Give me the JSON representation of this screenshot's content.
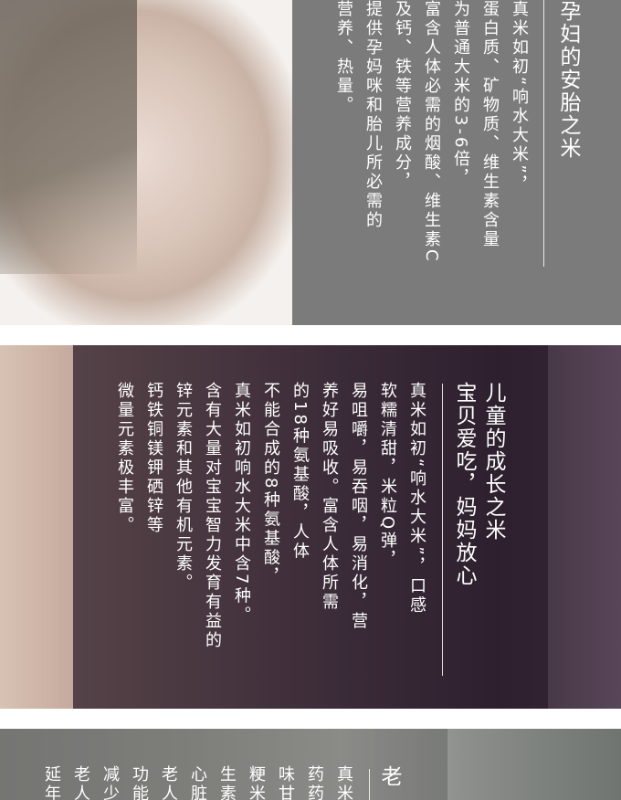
{
  "sections": [
    {
      "title": [
        "孕妇的安胎之米"
      ],
      "body": [
        "真米如初“响水大米”，",
        "蛋白质、矿物质、维生素含量",
        "为普通大米的3-6倍，",
        "富含人体必需的烟酸、维生素C",
        "及钙、铁等营养成分，",
        "提供孕妈咪和胎儿所必需的",
        "营养、热量。"
      ]
    },
    {
      "title": [
        "儿童的成长之米",
        "宝贝爱吃，妈妈放心"
      ],
      "body": [
        "真米如初“响水大米”，口感",
        "软糯清甜，米粒Q弹，",
        "易咀嚼，易吞咽，易消化，营",
        "养好易吸收。富含人体所需",
        "的18种氨基酸，人体",
        "不能合成的8种氨基酸，",
        "真米如初响水大米中含7种。",
        "含有大量对宝宝智力发育有益的",
        "锌元素和其他有机元素。",
        "钙铁铜镁钾硒锌等",
        "微量元素极丰富。"
      ]
    },
    {
      "title": [
        "老"
      ],
      "body": [
        "真米",
        "药药",
        "味甘",
        "粳米",
        "生素",
        "心脏",
        "老人",
        "功能",
        "减少",
        "老人",
        "延年"
      ]
    }
  ]
}
